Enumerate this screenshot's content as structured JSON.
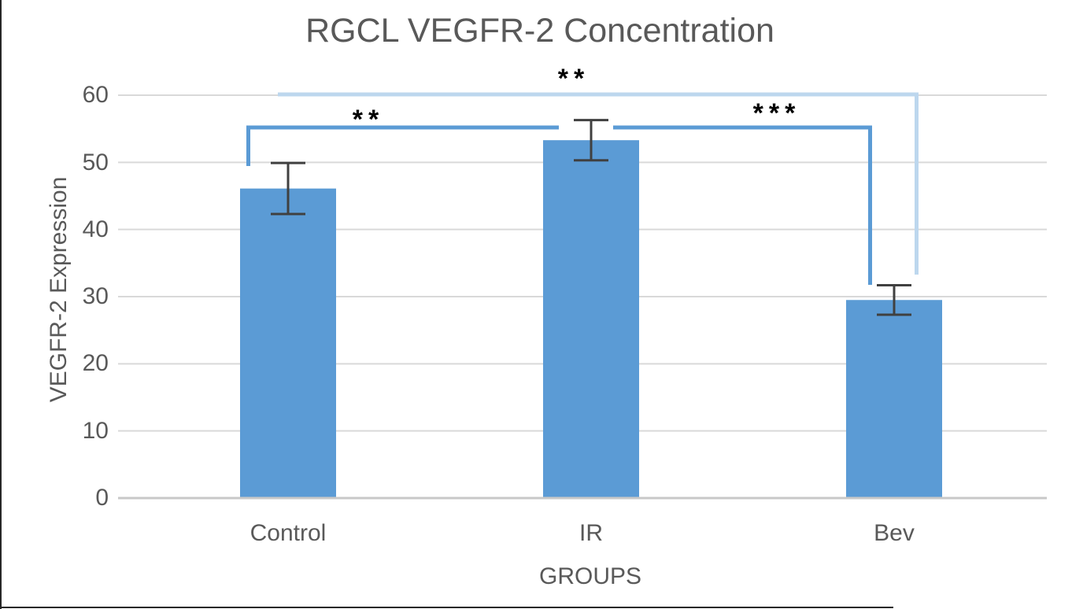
{
  "chart_data": {
    "type": "bar",
    "title": "RGCL VEGFR-2 Concentration",
    "xlabel": "GROUPS",
    "ylabel": "VEGFR-2 Expression",
    "categories": [
      "Control",
      "IR",
      "Bev"
    ],
    "values": [
      46.1,
      53.3,
      29.5
    ],
    "error_bars": [
      3.8,
      3.0,
      2.2
    ],
    "ylim": [
      0,
      60
    ],
    "yticks": [
      0,
      10,
      20,
      30,
      40,
      50,
      60
    ],
    "grid": "horizontal",
    "legend": "none",
    "bar_color": "#5B9BD5",
    "error_bar_color": "#404040",
    "gridline_color": "#D9D9D9",
    "axis_line_color": "#C8C8C8",
    "text_color": "#595959",
    "significance_brackets": [
      {
        "from": "Control",
        "to": "IR",
        "label": "**",
        "color": "#5B9BD5"
      },
      {
        "from": "IR",
        "to": "Bev",
        "label": "***",
        "color": "#5B9BD5"
      },
      {
        "from": "Control",
        "to": "Bev",
        "label": "**",
        "color": "#BDD7EE"
      }
    ]
  }
}
